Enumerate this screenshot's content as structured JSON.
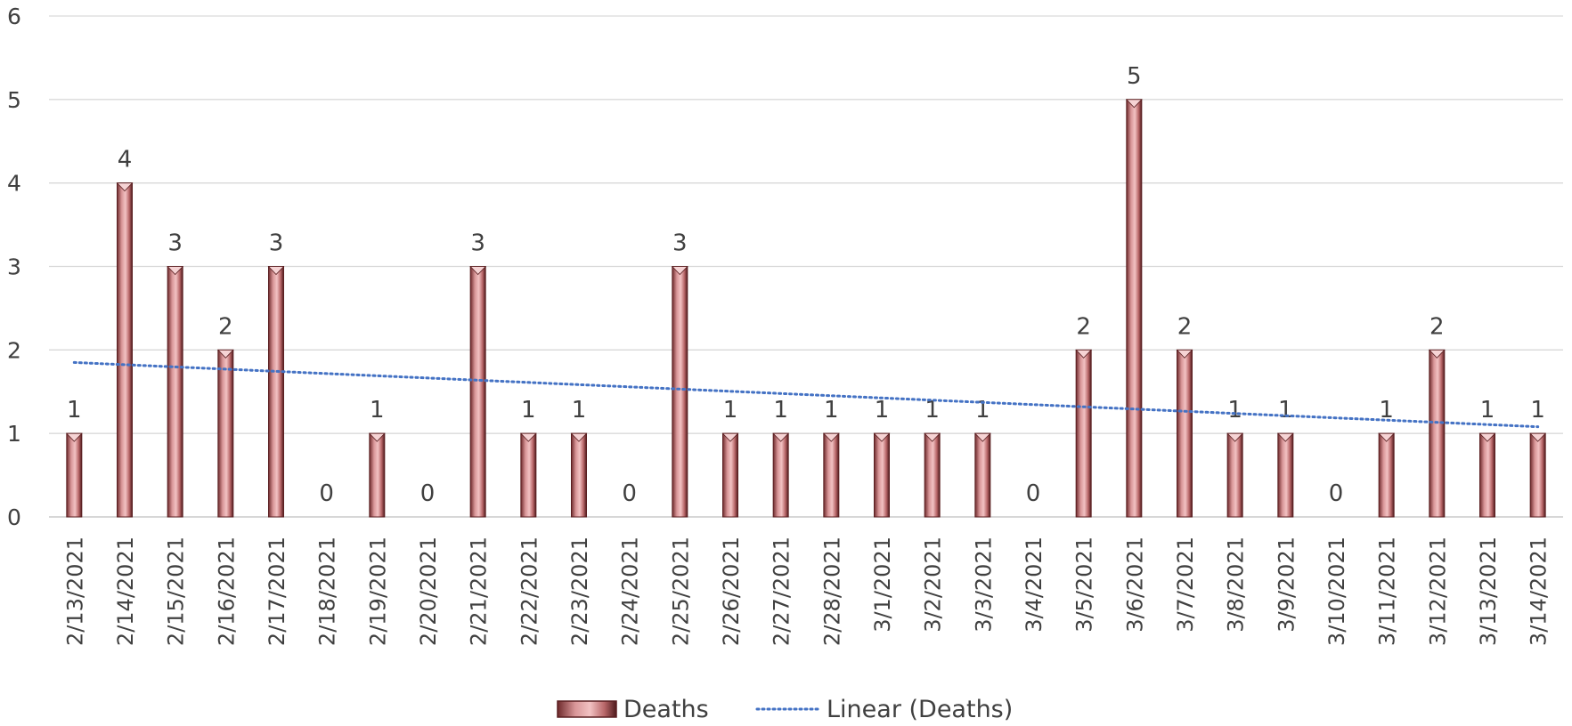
{
  "chart_data": {
    "type": "bar",
    "categories": [
      "2/13/2021",
      "2/14/2021",
      "2/15/2021",
      "2/16/2021",
      "2/17/2021",
      "2/18/2021",
      "2/19/2021",
      "2/20/2021",
      "2/21/2021",
      "2/22/2021",
      "2/23/2021",
      "2/24/2021",
      "2/25/2021",
      "2/26/2021",
      "2/27/2021",
      "2/28/2021",
      "3/1/2021",
      "3/2/2021",
      "3/3/2021",
      "3/4/2021",
      "3/5/2021",
      "3/6/2021",
      "3/7/2021",
      "3/8/2021",
      "3/9/2021",
      "3/10/2021",
      "3/11/2021",
      "3/12/2021",
      "3/13/2021",
      "3/14/2021"
    ],
    "series": [
      {
        "name": "Deaths",
        "values": [
          1,
          4,
          3,
          2,
          3,
          0,
          1,
          0,
          3,
          1,
          1,
          0,
          3,
          1,
          1,
          1,
          1,
          1,
          1,
          0,
          2,
          5,
          2,
          1,
          1,
          0,
          1,
          2,
          1,
          1
        ]
      }
    ],
    "trendline": {
      "name": "Linear (Deaths)",
      "type": "linear",
      "start": 1.85,
      "end": 1.08
    },
    "yticks": [
      "0",
      "1",
      "2",
      "3",
      "4",
      "5",
      "6"
    ],
    "ylim": [
      0,
      6
    ],
    "grid": true,
    "legend_position": "bottom",
    "colors": {
      "bar": "#c9797b",
      "bar_dark": "#5a1f21",
      "trend": "#4472c4",
      "grid": "#d9d9d9",
      "text": "#404040"
    }
  }
}
